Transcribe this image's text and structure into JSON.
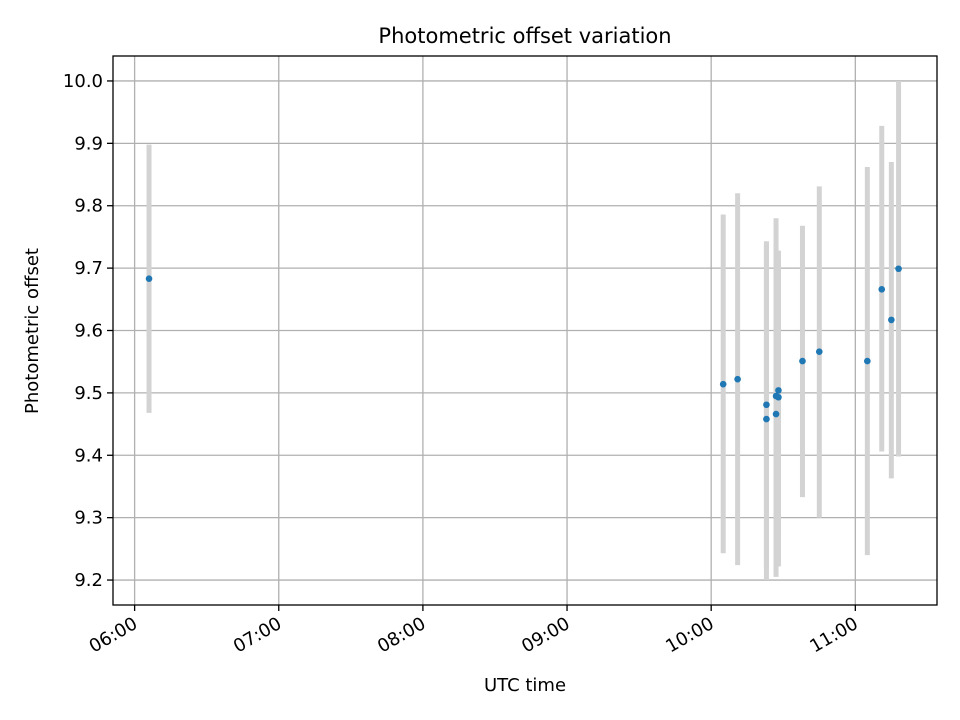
{
  "chart_data": {
    "type": "scatter",
    "title": "Photometric offset variation",
    "xlabel": "UTC time",
    "ylabel": "Photometric offset",
    "x_tick_labels": [
      "06:00",
      "07:00",
      "08:00",
      "09:00",
      "10:00",
      "11:00"
    ],
    "x_ticks": [
      "06:00",
      "07:00",
      "08:00",
      "09:00",
      "10:00",
      "11:00"
    ],
    "xlim": [
      "05:51",
      "11:34"
    ],
    "y_ticks": [
      9.2,
      9.3,
      9.4,
      9.5,
      9.6,
      9.7,
      9.8,
      9.9,
      10.0
    ],
    "y_tick_labels": [
      "9.2",
      "9.3",
      "9.4",
      "9.5",
      "9.6",
      "9.7",
      "9.8",
      "9.9",
      "10.0"
    ],
    "ylim": [
      9.16,
      10.04
    ],
    "grid": true,
    "colors": {
      "point": "#1f77b4",
      "errorbar": "#d3d3d3",
      "grid": "#b0b0b0"
    },
    "series": [
      {
        "points": [
          {
            "x": "06:06",
            "y": 9.683,
            "ylow": 9.468,
            "yhigh": 9.898
          },
          {
            "x": "10:05",
            "y": 9.514,
            "ylow": 9.243,
            "yhigh": 9.786
          },
          {
            "x": "10:11",
            "y": 9.522,
            "ylow": 9.224,
            "yhigh": 9.82
          },
          {
            "x": "10:23",
            "y": 9.458,
            "ylow": 9.2,
            "yhigh": 9.743
          },
          {
            "x": "10:23",
            "y": 9.481,
            "ylow": 9.218,
            "yhigh": 9.74
          },
          {
            "x": "10:27",
            "y": 9.466,
            "ylow": 9.205,
            "yhigh": 9.78
          },
          {
            "x": "10:27",
            "y": 9.495,
            "ylow": 9.212,
            "yhigh": 9.733
          },
          {
            "x": "10:28",
            "y": 9.504,
            "ylow": 9.222,
            "yhigh": 9.728
          },
          {
            "x": "10:28",
            "y": 9.493,
            "ylow": 9.272,
            "yhigh": 9.712
          },
          {
            "x": "10:38",
            "y": 9.551,
            "ylow": 9.333,
            "yhigh": 9.768
          },
          {
            "x": "10:45",
            "y": 9.566,
            "ylow": 9.3,
            "yhigh": 9.831
          },
          {
            "x": "11:05",
            "y": 9.551,
            "ylow": 9.24,
            "yhigh": 9.862
          },
          {
            "x": "11:11",
            "y": 9.666,
            "ylow": 9.406,
            "yhigh": 9.928
          },
          {
            "x": "11:15",
            "y": 9.617,
            "ylow": 9.363,
            "yhigh": 9.87
          },
          {
            "x": "11:18",
            "y": 9.699,
            "ylow": 9.398,
            "yhigh": 10.0
          }
        ]
      }
    ]
  }
}
